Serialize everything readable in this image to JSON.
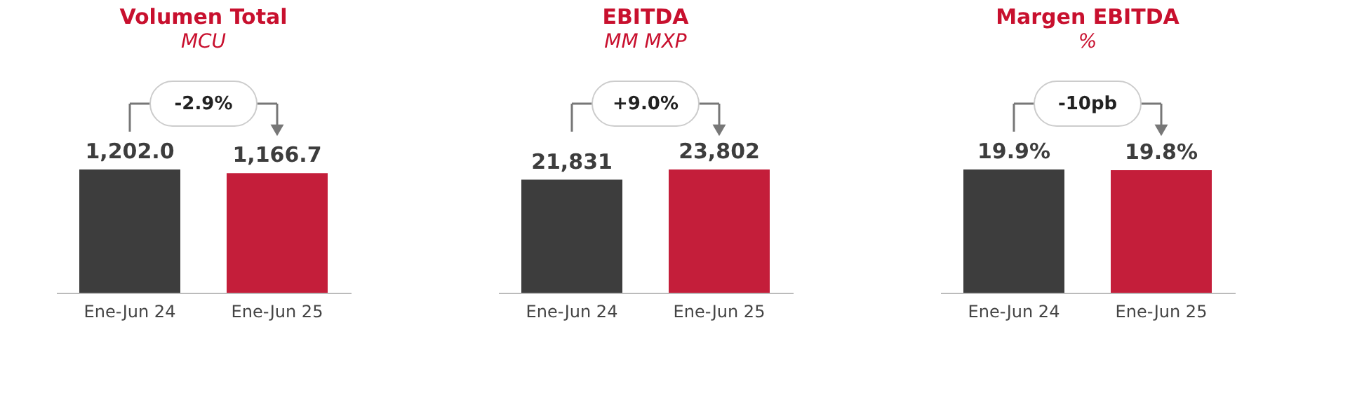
{
  "chart_data": [
    {
      "type": "bar",
      "title": "Volumen Total",
      "subtitle": "MCU",
      "categories": [
        "Ene-Jun 24",
        "Ene-Jun 25"
      ],
      "values": [
        1202.0,
        1166.7
      ],
      "colors": [
        "#3d3d3d",
        "#c41e3a"
      ],
      "value_labels": [
        "1,202.0",
        "1,166.7"
      ],
      "annotations": [
        "-2.9%"
      ]
    },
    {
      "type": "bar",
      "title": "EBITDA",
      "subtitle": "MM MXP",
      "categories": [
        "Ene-Jun 24",
        "Ene-Jun 25"
      ],
      "values": [
        21831,
        23802
      ],
      "colors": [
        "#3d3d3d",
        "#c41e3a"
      ],
      "value_labels": [
        "21,831",
        "23,802"
      ],
      "annotations": [
        "+9.0%"
      ]
    },
    {
      "type": "bar",
      "title": "Margen EBITDA",
      "subtitle": "%",
      "categories": [
        "Ene-Jun 24",
        "Ene-Jun 25"
      ],
      "values": [
        19.9,
        19.8
      ],
      "colors": [
        "#3d3d3d",
        "#c41e3a"
      ],
      "value_labels": [
        "19.9%",
        "19.8%"
      ],
      "annotations": [
        "-10pb"
      ]
    }
  ]
}
